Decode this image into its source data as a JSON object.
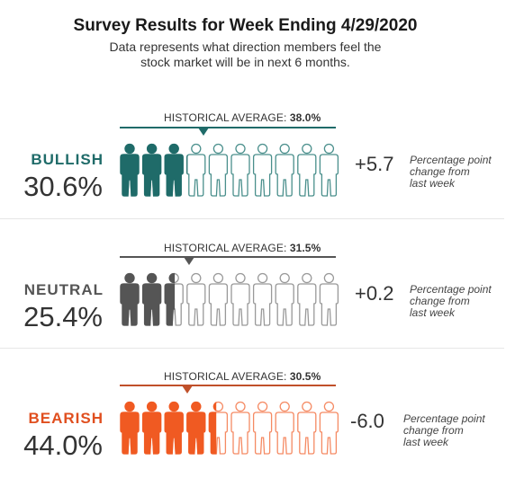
{
  "title": "Survey Results for Week Ending 4/29/2020",
  "subtitle_line1": "Data represents what direction members feel the",
  "subtitle_line2": "stock market will be in next 6 months.",
  "chart_data": {
    "type": "bar",
    "categories": [
      "BULLISH",
      "NEUTRAL",
      "BEARISH"
    ],
    "values": [
      30.6,
      25.4,
      44.0
    ],
    "historical_averages": [
      38.0,
      31.5,
      30.5
    ],
    "weekly_change": [
      "+5.7",
      "+0.2",
      "-6.0"
    ],
    "value_labels": [
      "30.6%",
      "25.4%",
      "44.0%"
    ],
    "historical_average_labels": [
      "38.0%",
      "31.5%",
      "30.5%"
    ],
    "icon_count": 10,
    "icon_shape": "person-icon",
    "ylim": [
      0,
      100
    ]
  },
  "hist_label_text": "HISTORICAL AVERAGE:",
  "change_note_line1": "Percentage point",
  "change_note_line2": "change from",
  "change_note_line3": "last week",
  "colors": {
    "bullish": "#1f6b69",
    "neutral": "#555555",
    "bearish": "#f05a22",
    "outline_bullish": "#4a8f8c",
    "outline_neutral": "#999999",
    "outline_bearish": "#f58a63"
  }
}
